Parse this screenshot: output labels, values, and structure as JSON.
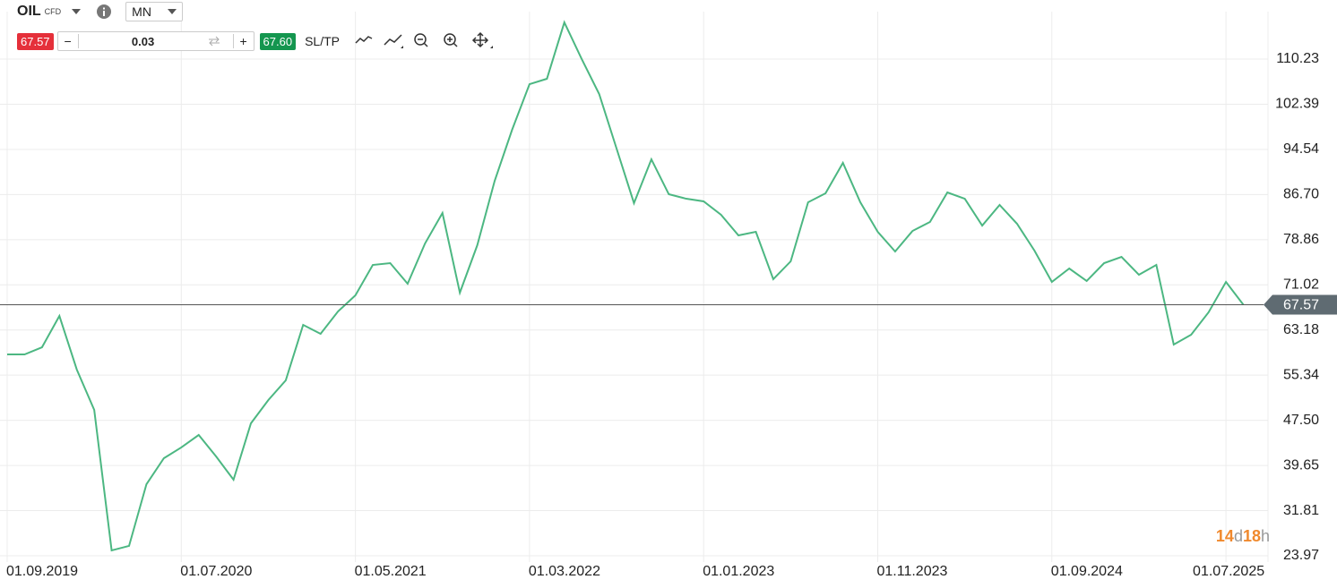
{
  "toolbar": {
    "symbol": "OIL",
    "instrument_type": "CFD",
    "timeframe": "MN",
    "sell_price": "67.57",
    "minus": "−",
    "volume": "0.03",
    "plus": "+",
    "buy_price": "67.60",
    "sltp": "SL/TP"
  },
  "chart_data": {
    "type": "line",
    "x": [
      "01.09.2019",
      "01.10.2019",
      "01.11.2019",
      "01.12.2019",
      "01.01.2020",
      "01.02.2020",
      "01.03.2020",
      "01.04.2020",
      "01.05.2020",
      "01.06.2020",
      "01.07.2020",
      "01.08.2020",
      "01.09.2020",
      "01.10.2020",
      "01.11.2020",
      "01.12.2020",
      "01.01.2021",
      "01.02.2021",
      "01.03.2021",
      "01.04.2021",
      "01.05.2021",
      "01.06.2021",
      "01.07.2021",
      "01.08.2021",
      "01.09.2021",
      "01.10.2021",
      "01.11.2021",
      "01.12.2021",
      "01.01.2022",
      "01.02.2022",
      "01.03.2022",
      "01.04.2022",
      "01.05.2022",
      "01.06.2022",
      "01.07.2022",
      "01.08.2022",
      "01.09.2022",
      "01.10.2022",
      "01.11.2022",
      "01.12.2022",
      "01.01.2023",
      "01.02.2023",
      "01.03.2023",
      "01.04.2023",
      "01.05.2023",
      "01.06.2023",
      "01.07.2023",
      "01.08.2023",
      "01.09.2023",
      "01.10.2023",
      "01.11.2023",
      "01.12.2023",
      "01.01.2024",
      "01.02.2024",
      "01.03.2024",
      "01.04.2024",
      "01.05.2024",
      "01.06.2024",
      "01.07.2024",
      "01.08.2024",
      "01.09.2024",
      "01.10.2024",
      "01.11.2024",
      "01.12.2024",
      "01.01.2025",
      "01.02.2025",
      "01.03.2025",
      "01.04.2025",
      "01.05.2025",
      "01.06.2025",
      "01.07.2025",
      "01.08.2025"
    ],
    "series": [
      {
        "color": "#4cb782",
        "values": [
          58.94,
          58.94,
          60.18,
          65.62,
          56.3,
          49.3,
          24.9,
          25.68,
          36.4,
          40.91,
          42.78,
          44.95,
          41.22,
          37.18,
          46.97,
          51.01,
          54.43,
          64.07,
          62.52,
          66.4,
          69.2,
          74.48,
          74.79,
          71.22,
          78.21,
          83.5,
          69.66,
          77.9,
          89.09,
          97.95,
          105.88,
          106.81,
          116.6,
          110.23,
          104.17,
          94.69,
          85.21,
          92.82,
          86.76,
          85.98,
          85.52,
          83.19,
          79.61,
          80.23,
          72.0,
          75.1,
          85.36,
          86.92,
          92.2,
          85.36,
          80.23,
          76.81,
          80.39,
          81.94,
          87.07,
          85.98,
          81.32,
          84.9,
          81.63,
          76.97,
          71.53,
          73.86,
          71.69,
          74.79,
          75.88,
          72.77,
          74.48,
          60.65,
          62.36,
          66.25,
          71.53,
          67.57
        ]
      }
    ],
    "xticks": [
      "01.09.2019",
      "01.07.2020",
      "01.05.2021",
      "01.03.2022",
      "01.01.2023",
      "01.11.2023",
      "01.09.2024",
      "01.07.2025"
    ],
    "ylim": [
      22.88,
      118.47
    ],
    "yticks": [
      23.97,
      31.81,
      39.65,
      {
        "value": 47.5,
        "label": "47.50"
      },
      55.34,
      63.18,
      71.02,
      78.86,
      {
        "value": 86.7,
        "label": "86.70"
      },
      94.54,
      102.39,
      110.23
    ],
    "current_price": 67.57,
    "countdown": [
      "14",
      "d",
      "18",
      "h"
    ],
    "grid": true
  }
}
